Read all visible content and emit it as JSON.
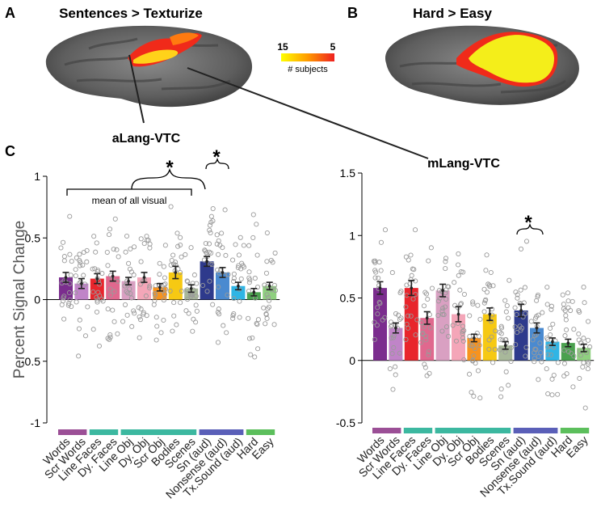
{
  "panel_labels": {
    "a": "A",
    "b": "B",
    "c": "C"
  },
  "brain_titles": {
    "a": "Sentences > Texturize",
    "b": "Hard > Easy"
  },
  "colorbar": {
    "low": "15",
    "high": "5",
    "label": "# subjects"
  },
  "roi_labels": {
    "left": "aLang-VTC",
    "right": "mLang-VTC"
  },
  "annotations": {
    "mean_all_visual": "mean of all visual",
    "star": "*"
  },
  "colors": {
    "words": "#7b2d8e",
    "scr_words": "#c084c8",
    "line_faces": "#e8252c",
    "dy_faces": "#e0688e",
    "line_obj": "#d9a0c2",
    "dy_obj": "#f4a6b8",
    "scr_obj": "#f7931e",
    "bodies": "#f6c913",
    "scenes": "#a8b89a",
    "sn_aud": "#2e3a8c",
    "nonsense_aud": "#4a8ad0",
    "tx_sound_aud": "#2fb5e5",
    "hard": "#4ba14f",
    "easy": "#8fd07f",
    "group_words": "#9b4f96",
    "group_faces": "#3cb8a0",
    "group_objects": "#3cb8a0",
    "group_auditory": "#5a5fb8",
    "group_task": "#5cbf5c"
  },
  "chart_data": [
    {
      "type": "bar",
      "title": "aLang-VTC",
      "ylabel": "Percent Signal Change",
      "ylim": [
        -1,
        1
      ],
      "yticks": [
        -1,
        -0.5,
        0,
        0.5,
        1
      ],
      "ytick_labels": [
        "-1",
        "-0.5",
        "0",
        "0.5",
        "1"
      ],
      "categories": [
        "Words",
        "Scr Words",
        "Line Faces",
        "Dy. Faces",
        "Line Obj",
        "Dy. Obj",
        "Scr Obj",
        "Bodies",
        "Scenes",
        "Sn (aud)",
        "Nonsense (aud)",
        "Tx.Sound (aud)",
        "Hard",
        "Easy"
      ],
      "values": [
        0.18,
        0.13,
        0.17,
        0.19,
        0.15,
        0.18,
        0.1,
        0.22,
        0.09,
        0.31,
        0.22,
        0.11,
        0.06,
        0.11
      ],
      "errors": [
        0.04,
        0.04,
        0.04,
        0.04,
        0.03,
        0.04,
        0.03,
        0.05,
        0.03,
        0.04,
        0.04,
        0.03,
        0.03,
        0.03
      ],
      "group_bars": [
        {
          "group": "words",
          "span": [
            0,
            2
          ]
        },
        {
          "group": "faces",
          "span": [
            2,
            4
          ]
        },
        {
          "group": "objects",
          "span": [
            4,
            9
          ]
        },
        {
          "group": "auditory",
          "span": [
            9,
            12
          ]
        },
        {
          "group": "task",
          "span": [
            12,
            14
          ]
        }
      ]
    },
    {
      "type": "bar",
      "title": "mLang-VTC",
      "ylabel": "",
      "ylim": [
        -0.5,
        1.5
      ],
      "yticks": [
        -0.5,
        0,
        0.5,
        1,
        1.5
      ],
      "ytick_labels": [
        "-0.5",
        "0",
        "0.5",
        "1",
        "1.5"
      ],
      "categories": [
        "Words",
        "Scr Words",
        "Line Faces",
        "Dy. Faces",
        "Line Obj",
        "Dy. Obj",
        "Scr Obj",
        "Bodies",
        "Scenes",
        "Sn (aud)",
        "Nonsense (aud)",
        "Tx.Sound (aud)",
        "Hard",
        "Easy"
      ],
      "values": [
        0.58,
        0.26,
        0.58,
        0.34,
        0.56,
        0.37,
        0.18,
        0.37,
        0.12,
        0.4,
        0.26,
        0.15,
        0.14,
        0.1
      ],
      "errors": [
        0.05,
        0.04,
        0.06,
        0.05,
        0.05,
        0.06,
        0.03,
        0.05,
        0.03,
        0.05,
        0.04,
        0.03,
        0.03,
        0.03
      ],
      "group_bars": [
        {
          "group": "words",
          "span": [
            0,
            2
          ]
        },
        {
          "group": "faces",
          "span": [
            2,
            4
          ]
        },
        {
          "group": "objects",
          "span": [
            4,
            9
          ]
        },
        {
          "group": "auditory",
          "span": [
            9,
            12
          ]
        },
        {
          "group": "task",
          "span": [
            12,
            14
          ]
        }
      ]
    }
  ]
}
